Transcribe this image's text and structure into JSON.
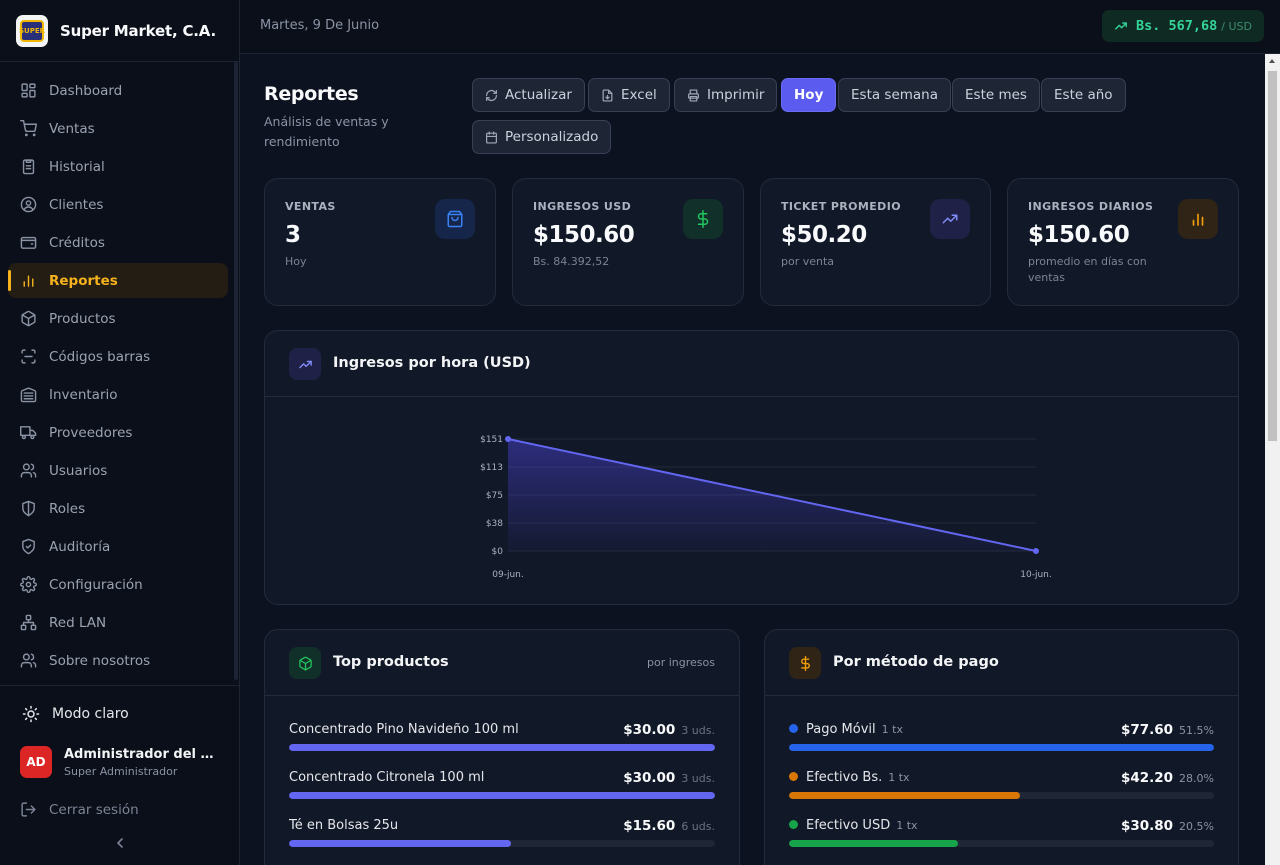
{
  "brand": {
    "name": "Super Market, C.A.",
    "logo_text": "SUPER"
  },
  "nav": [
    {
      "label": "Dashboard",
      "icon": "dashboard-icon",
      "active": false
    },
    {
      "label": "Ventas",
      "icon": "cart-icon",
      "active": false
    },
    {
      "label": "Historial",
      "icon": "clipboard-icon",
      "active": false
    },
    {
      "label": "Clientes",
      "icon": "user-circle-icon",
      "active": false
    },
    {
      "label": "Créditos",
      "icon": "wallet-icon",
      "active": false
    },
    {
      "label": "Reportes",
      "icon": "bar-chart-icon",
      "active": true
    },
    {
      "label": "Productos",
      "icon": "package-icon",
      "active": false
    },
    {
      "label": "Códigos barras",
      "icon": "scan-icon",
      "active": false
    },
    {
      "label": "Inventario",
      "icon": "warehouse-icon",
      "active": false
    },
    {
      "label": "Proveedores",
      "icon": "truck-icon",
      "active": false
    },
    {
      "label": "Usuarios",
      "icon": "users-icon",
      "active": false
    },
    {
      "label": "Roles",
      "icon": "shield-icon",
      "active": false
    },
    {
      "label": "Auditoría",
      "icon": "shield-check-icon",
      "active": false
    },
    {
      "label": "Configuración",
      "icon": "gear-icon",
      "active": false
    },
    {
      "label": "Red LAN",
      "icon": "network-icon",
      "active": false
    },
    {
      "label": "Sobre nosotros",
      "icon": "users-group-icon",
      "active": false
    }
  ],
  "sidebar_footer": {
    "theme_toggle": "Modo claro",
    "user_initials": "AD",
    "user_name": "Administrador del Sistema",
    "user_role": "Super Administrador",
    "logout": "Cerrar sesión"
  },
  "topbar": {
    "date": "Martes, 9 De Junio",
    "rate_value": "Bs. 567,68",
    "rate_unit": "/ USD"
  },
  "page": {
    "title": "Reportes",
    "subtitle": "Análisis de ventas y rendimiento"
  },
  "actions": {
    "refresh": "Actualizar",
    "excel": "Excel",
    "print": "Imprimir",
    "periods": [
      "Hoy",
      "Esta semana",
      "Este mes",
      "Este año"
    ],
    "active_period": "Hoy",
    "custom": "Personalizado"
  },
  "stats": [
    {
      "label": "VENTAS",
      "value": "3",
      "sub": "Hoy",
      "icon": "shopping-bag-icon",
      "color": "#3b82f6"
    },
    {
      "label": "INGRESOS USD",
      "value": "$150.60",
      "sub": "Bs. 84.392,52",
      "icon": "dollar-icon",
      "color": "#22c55e"
    },
    {
      "label": "TICKET PROMEDIO",
      "value": "$50.20",
      "sub": "por venta",
      "icon": "trending-up-icon",
      "color": "#818cf8"
    },
    {
      "label": "INGRESOS DIARIOS",
      "value": "$150.60",
      "sub": "promedio en días con ventas",
      "icon": "bar-chart-icon",
      "color": "#f59e0b"
    }
  ],
  "hourly_panel": {
    "title": "Ingresos por hora (USD)"
  },
  "chart_data": {
    "type": "area",
    "title": "Ingresos por hora (USD)",
    "x": [
      "09-jun.",
      "10-jun."
    ],
    "values": [
      151,
      0
    ],
    "yticks": [
      "$0",
      "$38",
      "$75",
      "$113",
      "$151"
    ],
    "ylim": [
      0,
      151
    ],
    "grid": true,
    "color": "#6366f1"
  },
  "top_products": {
    "title": "Top productos",
    "note": "por ingresos",
    "items": [
      {
        "name": "Concentrado Pino Navideño 100 ml",
        "amount": "$30.00",
        "units": "3 uds.",
        "pct": 100
      },
      {
        "name": "Concentrado Citronela 100 ml",
        "amount": "$30.00",
        "units": "3 uds.",
        "pct": 100
      },
      {
        "name": "Té en Bolsas 25u",
        "amount": "$15.60",
        "units": "6 uds.",
        "pct": 52
      }
    ],
    "bar_color": "#6366f1"
  },
  "payment_methods": {
    "title": "Por método de pago",
    "items": [
      {
        "name": "Pago Móvil",
        "tx": "1 tx",
        "amount": "$77.60",
        "pct_label": "51.5%",
        "pct": 100,
        "color": "#2563eb"
      },
      {
        "name": "Efectivo Bs.",
        "tx": "1 tx",
        "amount": "$42.20",
        "pct_label": "28.0%",
        "pct": 54.4,
        "color": "#d97706"
      },
      {
        "name": "Efectivo USD",
        "tx": "1 tx",
        "amount": "$30.80",
        "pct_label": "20.5%",
        "pct": 39.7,
        "color": "#16a34a"
      }
    ]
  }
}
